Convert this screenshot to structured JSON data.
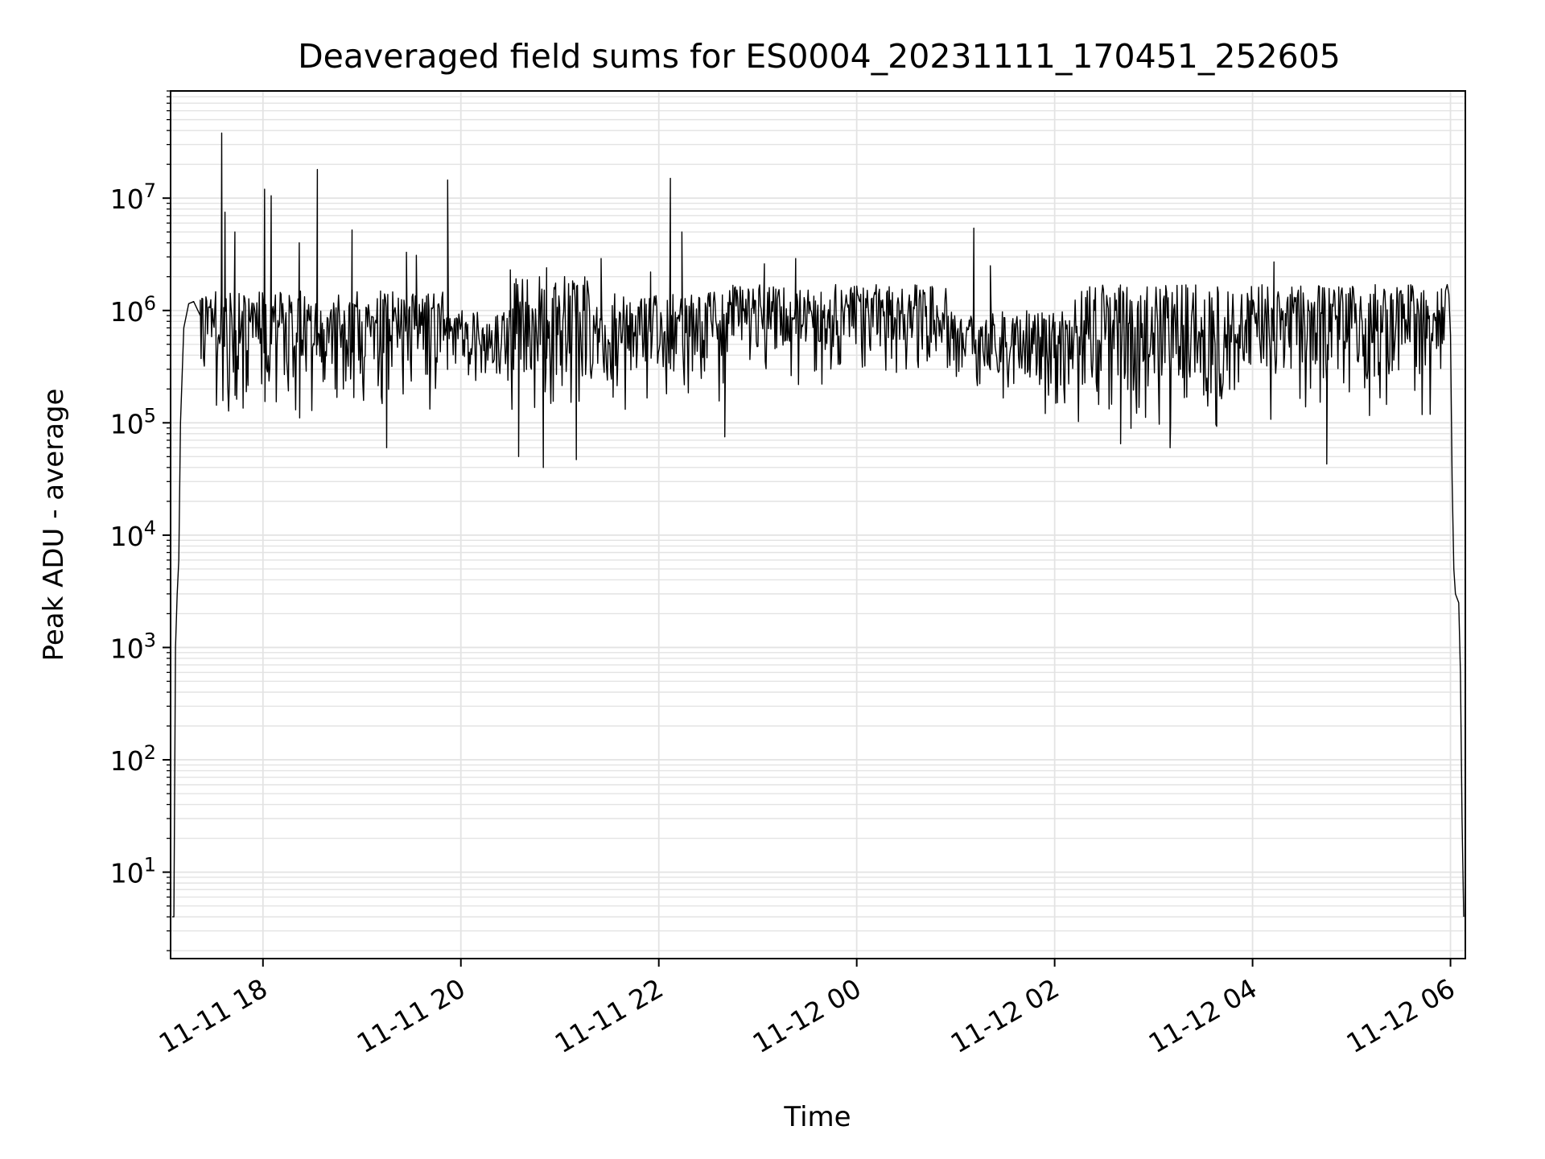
{
  "chart_data": {
    "type": "line",
    "title": "Deaveraged field sums for ES0004_20231111_170451_252605",
    "xlabel": "Time",
    "ylabel": "Peak ADU - average",
    "yscale": "log",
    "grid": true,
    "x_tick_labels": [
      "11-11 18",
      "11-11 20",
      "11-11 22",
      "11-12 00",
      "11-12 02",
      "11-12 04",
      "11-12 06"
    ],
    "y_tick_labels": [
      {
        "base": "10",
        "exp": "1"
      },
      {
        "base": "10",
        "exp": "2"
      },
      {
        "base": "10",
        "exp": "3"
      },
      {
        "base": "10",
        "exp": "4"
      },
      {
        "base": "10",
        "exp": "5"
      },
      {
        "base": "10",
        "exp": "6"
      },
      {
        "base": "10",
        "exp": "7"
      }
    ],
    "xlim": [
      "2023-11-11 17:04",
      "2023-11-12 06:09"
    ],
    "ylim": [
      1.7,
      90000000
    ],
    "series": [
      {
        "color": "#000000",
        "points": [
          [
            "2023-11-11 17:05",
            4
          ],
          [
            "2023-11-11 17:06",
            4
          ],
          [
            "2023-11-11 17:07",
            1000
          ],
          [
            "2023-11-11 17:08",
            3000
          ],
          [
            "2023-11-11 17:09",
            6000
          ],
          [
            "2023-11-11 17:10",
            100000
          ],
          [
            "2023-11-11 17:12",
            700000
          ],
          [
            "2023-11-11 17:15",
            1150000
          ],
          [
            "2023-11-11 17:18",
            1200000
          ],
          [
            "2023-11-11 17:22",
            900000
          ]
        ],
        "noisy_segments": [
          {
            "start": "2023-11-11 17:22",
            "end": "2023-11-11 19:50",
            "upper": 1500000,
            "lower": 90000
          },
          {
            "start": "2023-11-11 19:50",
            "end": "2023-11-11 20:30",
            "upper": 1000000,
            "lower": 150000
          },
          {
            "start": "2023-11-11 20:30",
            "end": "2023-11-11 21:20",
            "upper": 2000000,
            "lower": 70000
          },
          {
            "start": "2023-11-11 21:20",
            "end": "2023-11-11 22:40",
            "upper": 1500000,
            "lower": 100000
          },
          {
            "start": "2023-11-11 22:40",
            "end": "2023-11-12 00:55",
            "upper": 1700000,
            "lower": 200000
          },
          {
            "start": "2023-11-12 00:55",
            "end": "2023-11-12 02:10",
            "upper": 1000000,
            "lower": 100000
          },
          {
            "start": "2023-11-12 02:10",
            "end": "2023-11-12 03:50",
            "upper": 1700000,
            "lower": 80000
          },
          {
            "start": "2023-11-12 03:50",
            "end": "2023-11-12 05:57",
            "upper": 1700000,
            "lower": 100000
          }
        ],
        "spikes": [
          [
            "2023-11-11 17:35",
            38000000
          ],
          [
            "2023-11-11 17:37",
            7500000
          ],
          [
            "2023-11-11 17:43",
            5000000
          ],
          [
            "2023-11-11 18:01",
            12000000
          ],
          [
            "2023-11-11 18:05",
            10500000
          ],
          [
            "2023-11-11 18:22",
            4000000
          ],
          [
            "2023-11-11 18:33",
            18000000
          ],
          [
            "2023-11-11 18:54",
            5200000
          ],
          [
            "2023-11-11 19:27",
            3300000
          ],
          [
            "2023-11-11 19:33",
            3100000
          ],
          [
            "2023-11-11 19:52",
            14500000
          ],
          [
            "2023-11-11 22:07",
            15000000
          ],
          [
            "2023-11-11 22:14",
            5000000
          ],
          [
            "2023-11-11 21:55",
            2200000
          ],
          [
            "2023-11-11 21:25",
            2900000
          ],
          [
            "2023-11-11 20:52",
            2400000
          ],
          [
            "2023-11-11 20:30",
            2300000
          ],
          [
            "2023-11-11 23:04",
            2600000
          ],
          [
            "2023-11-11 23:23",
            2900000
          ],
          [
            "2023-11-12 01:11",
            5400000
          ],
          [
            "2023-11-12 01:21",
            2500000
          ],
          [
            "2023-11-12 04:13",
            2700000
          ]
        ],
        "dips": [
          [
            "2023-11-11 19:15",
            60000
          ],
          [
            "2023-11-11 20:35",
            50000
          ],
          [
            "2023-11-11 20:50",
            40000
          ],
          [
            "2023-11-11 21:10",
            47000
          ],
          [
            "2023-11-11 22:40",
            75000
          ],
          [
            "2023-11-12 02:40",
            65000
          ],
          [
            "2023-11-12 03:10",
            60000
          ],
          [
            "2023-11-12 04:45",
            43000
          ]
        ],
        "tail": [
          [
            "2023-11-12 05:57",
            1500000
          ],
          [
            "2023-11-12 05:58",
            1700000
          ],
          [
            "2023-11-12 05:59",
            1400000
          ],
          [
            "2023-11-12 06:00",
            600000
          ],
          [
            "2023-11-12 06:01",
            30000
          ],
          [
            "2023-11-12 06:02",
            5000
          ],
          [
            "2023-11-12 06:03",
            3000
          ],
          [
            "2023-11-12 06:05",
            2500
          ],
          [
            "2023-11-12 06:06",
            600
          ],
          [
            "2023-11-12 06:07",
            30
          ],
          [
            "2023-11-12 06:08",
            4
          ]
        ]
      }
    ]
  }
}
